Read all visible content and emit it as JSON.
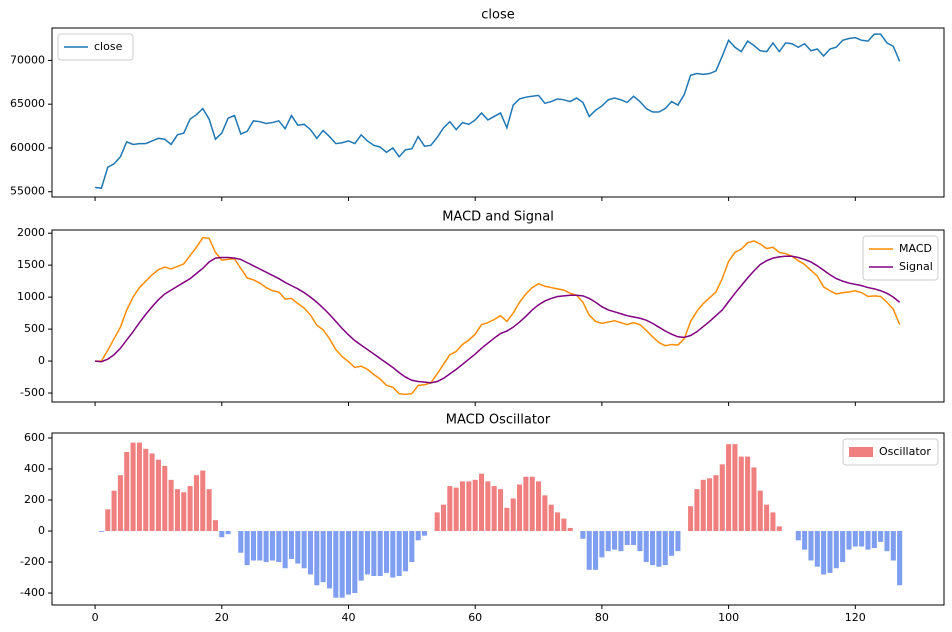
{
  "chart_data": [
    {
      "type": "line",
      "title": "close",
      "legend": "upper left",
      "show_xtick_labels": false,
      "x": [
        0,
        1,
        2,
        3,
        4,
        5,
        6,
        7,
        8,
        9,
        10,
        11,
        12,
        13,
        14,
        15,
        16,
        17,
        18,
        19,
        20,
        21,
        22,
        23,
        24,
        25,
        26,
        27,
        28,
        29,
        30,
        31,
        32,
        33,
        34,
        35,
        36,
        37,
        38,
        39,
        40,
        41,
        42,
        43,
        44,
        45,
        46,
        47,
        48,
        49,
        50,
        51,
        52,
        53,
        54,
        55,
        56,
        57,
        58,
        59,
        60,
        61,
        62,
        63,
        64,
        65,
        66,
        67,
        68,
        69,
        70,
        71,
        72,
        73,
        74,
        75,
        76,
        77,
        78,
        79,
        80,
        81,
        82,
        83,
        84,
        85,
        86,
        87,
        88,
        89,
        90,
        91,
        92,
        93,
        94,
        95,
        96,
        97,
        98,
        99,
        100,
        101,
        102,
        103,
        104,
        105,
        106,
        107,
        108,
        109,
        110,
        111,
        112,
        113,
        114,
        115,
        116,
        117,
        118,
        119,
        120,
        121,
        122,
        123,
        124,
        125,
        126,
        127
      ],
      "series": [
        {
          "name": "close",
          "color": "#1f77b4",
          "values": [
            55500,
            55400,
            57800,
            58200,
            59000,
            60700,
            60400,
            60500,
            60500,
            60800,
            61100,
            61000,
            60400,
            61500,
            61700,
            63300,
            63800,
            64500,
            63300,
            61000,
            61700,
            63400,
            63700,
            61600,
            61900,
            63100,
            63000,
            62800,
            62900,
            63100,
            62200,
            63700,
            62600,
            62700,
            62100,
            61100,
            62000,
            61300,
            60500,
            60600,
            60800,
            60500,
            61500,
            60800,
            60300,
            60100,
            59500,
            60000,
            59000,
            59800,
            59900,
            61300,
            60200,
            60300,
            61200,
            62300,
            63000,
            62100,
            62900,
            62700,
            63200,
            64000,
            63200,
            63600,
            64000,
            62300,
            64900,
            65600,
            65800,
            65900,
            66000,
            65100,
            65300,
            65600,
            65500,
            65300,
            65700,
            65200,
            63600,
            64300,
            64800,
            65500,
            65700,
            65500,
            65200,
            65900,
            65300,
            64500,
            64100,
            64100,
            64500,
            65300,
            64900,
            66100,
            68300,
            68500,
            68400,
            68500,
            68800,
            70500,
            72300,
            71500,
            71000,
            72200,
            71700,
            71100,
            71000,
            72000,
            71000,
            72000,
            71900,
            71500,
            71900,
            71100,
            71300,
            70500,
            71300,
            71500,
            72300,
            72500,
            72600,
            72300,
            72200,
            73000,
            73000,
            72000,
            71600,
            69900
          ]
        }
      ],
      "xlim": [
        -6.8,
        134
      ],
      "xticks": [
        0,
        20,
        40,
        60,
        80,
        100,
        120
      ],
      "ylim": [
        54400,
        73700
      ],
      "yticks": [
        55000,
        60000,
        65000,
        70000
      ]
    },
    {
      "type": "line",
      "title": "MACD and Signal",
      "legend": "upper right",
      "show_xtick_labels": false,
      "x": [
        0,
        1,
        2,
        3,
        4,
        5,
        6,
        7,
        8,
        9,
        10,
        11,
        12,
        13,
        14,
        15,
        16,
        17,
        18,
        19,
        20,
        21,
        22,
        23,
        24,
        25,
        26,
        27,
        28,
        29,
        30,
        31,
        32,
        33,
        34,
        35,
        36,
        37,
        38,
        39,
        40,
        41,
        42,
        43,
        44,
        45,
        46,
        47,
        48,
        49,
        50,
        51,
        52,
        53,
        54,
        55,
        56,
        57,
        58,
        59,
        60,
        61,
        62,
        63,
        64,
        65,
        66,
        67,
        68,
        69,
        70,
        71,
        72,
        73,
        74,
        75,
        76,
        77,
        78,
        79,
        80,
        81,
        82,
        83,
        84,
        85,
        86,
        87,
        88,
        89,
        90,
        91,
        92,
        93,
        94,
        95,
        96,
        97,
        98,
        99,
        100,
        101,
        102,
        103,
        104,
        105,
        106,
        107,
        108,
        109,
        110,
        111,
        112,
        113,
        114,
        115,
        116,
        117,
        118,
        119,
        120,
        121,
        122,
        123,
        124,
        125,
        126,
        127
      ],
      "series": [
        {
          "name": "MACD",
          "color": "#ff8c00",
          "values": [
            0,
            0,
            170,
            350,
            530,
            800,
            1000,
            1150,
            1250,
            1350,
            1430,
            1470,
            1440,
            1480,
            1520,
            1650,
            1780,
            1930,
            1920,
            1700,
            1580,
            1590,
            1600,
            1450,
            1300,
            1270,
            1220,
            1150,
            1100,
            1080,
            970,
            980,
            900,
            830,
            720,
            560,
            490,
            350,
            180,
            70,
            -10,
            -100,
            -80,
            -130,
            -210,
            -280,
            -380,
            -410,
            -510,
            -520,
            -510,
            -380,
            -370,
            -340,
            -200,
            -50,
            100,
            150,
            260,
            330,
            420,
            570,
            600,
            650,
            710,
            620,
            750,
            920,
            1050,
            1150,
            1210,
            1170,
            1150,
            1130,
            1110,
            1060,
            1030,
            920,
            720,
            620,
            590,
            610,
            630,
            600,
            570,
            600,
            570,
            480,
            380,
            290,
            240,
            260,
            250,
            350,
            620,
            780,
            900,
            990,
            1080,
            1290,
            1560,
            1700,
            1750,
            1850,
            1880,
            1830,
            1760,
            1780,
            1700,
            1680,
            1640,
            1570,
            1510,
            1420,
            1330,
            1160,
            1100,
            1050,
            1070,
            1080,
            1100,
            1070,
            1010,
            1020,
            1010,
            920,
            810,
            570
          ]
        },
        {
          "name": "Signal",
          "color": "#800080",
          "values": [
            0,
            -10,
            30,
            100,
            200,
            330,
            460,
            600,
            730,
            850,
            960,
            1050,
            1110,
            1170,
            1230,
            1290,
            1370,
            1450,
            1550,
            1610,
            1620,
            1620,
            1610,
            1590,
            1540,
            1490,
            1440,
            1390,
            1340,
            1290,
            1230,
            1180,
            1130,
            1070,
            1000,
            920,
            830,
            730,
            620,
            510,
            410,
            320,
            250,
            180,
            110,
            40,
            -30,
            -100,
            -180,
            -250,
            -300,
            -320,
            -330,
            -340,
            -320,
            -270,
            -200,
            -130,
            -50,
            30,
            110,
            200,
            280,
            360,
            430,
            470,
            530,
            610,
            700,
            800,
            880,
            940,
            980,
            1010,
            1020,
            1030,
            1030,
            1020,
            980,
            920,
            850,
            800,
            770,
            740,
            710,
            690,
            670,
            640,
            590,
            530,
            470,
            420,
            380,
            370,
            400,
            460,
            540,
            620,
            710,
            800,
            930,
            1060,
            1180,
            1300,
            1410,
            1510,
            1570,
            1610,
            1630,
            1640,
            1640,
            1620,
            1590,
            1550,
            1490,
            1420,
            1350,
            1290,
            1250,
            1220,
            1200,
            1180,
            1150,
            1130,
            1100,
            1060,
            1000,
            920
          ]
        }
      ],
      "xlim": [
        -6.8,
        134
      ],
      "xticks": [
        0,
        20,
        40,
        60,
        80,
        100,
        120
      ],
      "ylim": [
        -640,
        2050
      ],
      "yticks": [
        -500,
        0,
        500,
        1000,
        1500,
        2000
      ]
    },
    {
      "type": "bar",
      "title": "MACD Oscillator",
      "legend": "upper right",
      "show_xtick_labels": true,
      "x": [
        0,
        1,
        2,
        3,
        4,
        5,
        6,
        7,
        8,
        9,
        10,
        11,
        12,
        13,
        14,
        15,
        16,
        17,
        18,
        19,
        20,
        21,
        22,
        23,
        24,
        25,
        26,
        27,
        28,
        29,
        30,
        31,
        32,
        33,
        34,
        35,
        36,
        37,
        38,
        39,
        40,
        41,
        42,
        43,
        44,
        45,
        46,
        47,
        48,
        49,
        50,
        51,
        52,
        53,
        54,
        55,
        56,
        57,
        58,
        59,
        60,
        61,
        62,
        63,
        64,
        65,
        66,
        67,
        68,
        69,
        70,
        71,
        72,
        73,
        74,
        75,
        76,
        77,
        78,
        79,
        80,
        81,
        82,
        83,
        84,
        85,
        86,
        87,
        88,
        89,
        90,
        91,
        92,
        93,
        94,
        95,
        96,
        97,
        98,
        99,
        100,
        101,
        102,
        103,
        104,
        105,
        106,
        107,
        108,
        109,
        110,
        111,
        112,
        113,
        114,
        115,
        116,
        117,
        118,
        119,
        120,
        121,
        122,
        123,
        124,
        125,
        126,
        127
      ],
      "series": [
        {
          "name": "Oscillator",
          "color": "#f08080",
          "negative_color": "#7f9ef0",
          "values": [
            0,
            -5,
            140,
            260,
            360,
            510,
            570,
            570,
            530,
            500,
            460,
            420,
            330,
            270,
            250,
            290,
            360,
            390,
            270,
            70,
            -40,
            -20,
            0,
            -140,
            -220,
            -190,
            -190,
            -200,
            -190,
            -200,
            -240,
            -180,
            -210,
            -240,
            -280,
            -350,
            -330,
            -370,
            -430,
            -430,
            -410,
            -400,
            -320,
            -280,
            -290,
            -290,
            -270,
            -300,
            -290,
            -260,
            -200,
            -60,
            -30,
            0,
            120,
            170,
            290,
            280,
            320,
            320,
            330,
            370,
            320,
            290,
            270,
            150,
            210,
            300,
            350,
            350,
            320,
            230,
            170,
            120,
            80,
            20,
            0,
            -50,
            -250,
            -250,
            -170,
            -130,
            -120,
            -130,
            -90,
            -90,
            -130,
            -200,
            -220,
            -230,
            -220,
            -160,
            -130,
            0,
            160,
            270,
            330,
            340,
            360,
            430,
            560,
            560,
            480,
            480,
            410,
            260,
            170,
            120,
            30,
            0,
            0,
            -60,
            -120,
            -190,
            -230,
            -280,
            -270,
            -240,
            -200,
            -120,
            -100,
            -100,
            -120,
            -110,
            -70,
            -130,
            -190,
            -350
          ]
        }
      ],
      "xlim": [
        -6.8,
        134
      ],
      "xticks": [
        0,
        20,
        40,
        60,
        80,
        100,
        120
      ],
      "ylim": [
        -477,
        632
      ],
      "yticks": [
        -400,
        -200,
        0,
        200,
        400,
        600
      ]
    }
  ]
}
